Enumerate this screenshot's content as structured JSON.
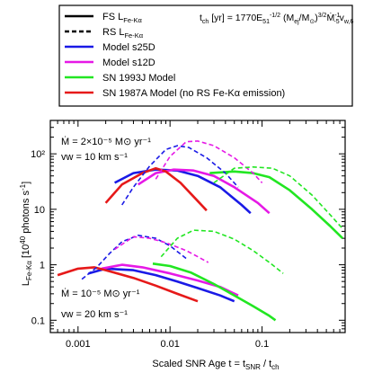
{
  "legend": {
    "entries": [
      {
        "label": "FS L",
        "sub": "Fe-Kα",
        "style": "solid",
        "color": "#000000"
      },
      {
        "label": "RS L",
        "sub": "Fe-Kα",
        "style": "dashed",
        "color": "#000000"
      },
      {
        "label": "Model s25D",
        "sub": "",
        "style": "solid",
        "color": "#1a1ae6"
      },
      {
        "label": "Model s12D",
        "sub": "",
        "style": "solid",
        "color": "#e619e6"
      },
      {
        "label": "SN 1993J Model",
        "sub": "",
        "style": "solid",
        "color": "#22e622"
      },
      {
        "label": "SN 1987A Model (no RS Fe-Kα emission)",
        "sub": "",
        "style": "solid",
        "color": "#e61919"
      }
    ],
    "formula": "t_ch [yr] = 1770 E_51^-1/2 (M_ej/M_sun)^3/2 Mdot_-5^-1 v_w,6"
  },
  "panel_labels": {
    "top_mdot": "2×10⁻⁵ M⊙ yr⁻¹",
    "top_vw": "10 km s⁻¹",
    "bottom_mdot": "10⁻⁵ M⊙ yr⁻¹",
    "bottom_vw": "20 km s⁻¹"
  },
  "chart_data": {
    "type": "line",
    "title": "",
    "xlabel": "Scaled SNR Age t = t_SNR / t_ch",
    "ylabel": "L_Fe-Kα [10^40 photons s^-1]",
    "xscale": "log",
    "yscale": "log",
    "xlim": [
      0.0005,
      0.8
    ],
    "ylim": [
      0.06,
      400
    ],
    "xticks": [
      0.001,
      0.01,
      0.1
    ],
    "xticklabels": [
      "0.001",
      "0.01",
      "0.1"
    ],
    "yticks": [
      0.1,
      1,
      10,
      100
    ],
    "yticklabels": [
      "0.1",
      "1",
      "10",
      "10²"
    ],
    "series": [
      {
        "name": "Model s25D",
        "group": "top",
        "kind": "FS",
        "color": "#1a1ae6",
        "dash": false,
        "points": [
          [
            0.0025,
            30
          ],
          [
            0.004,
            45
          ],
          [
            0.007,
            52
          ],
          [
            0.012,
            50
          ],
          [
            0.02,
            40
          ],
          [
            0.035,
            25
          ],
          [
            0.06,
            12
          ],
          [
            0.075,
            8.5
          ]
        ]
      },
      {
        "name": "Model s12D",
        "group": "top",
        "kind": "FS",
        "color": "#e619e6",
        "dash": false,
        "points": [
          [
            0.0045,
            28
          ],
          [
            0.007,
            45
          ],
          [
            0.011,
            52
          ],
          [
            0.018,
            50
          ],
          [
            0.03,
            40
          ],
          [
            0.05,
            25
          ],
          [
            0.09,
            13
          ],
          [
            0.12,
            8.5
          ]
        ]
      },
      {
        "name": "SN 1993J Model",
        "group": "top",
        "kind": "FS",
        "color": "#22e622",
        "dash": false,
        "points": [
          [
            0.027,
            45
          ],
          [
            0.05,
            48
          ],
          [
            0.08,
            45
          ],
          [
            0.12,
            38
          ],
          [
            0.2,
            22
          ],
          [
            0.35,
            10
          ],
          [
            0.55,
            5
          ],
          [
            0.75,
            3
          ]
        ]
      },
      {
        "name": "SN 1987A Model (no RS Fe-Kα emission)",
        "group": "top",
        "kind": "FS",
        "color": "#e61919",
        "dash": false,
        "points": [
          [
            0.002,
            13
          ],
          [
            0.003,
            28
          ],
          [
            0.005,
            45
          ],
          [
            0.007,
            55
          ],
          [
            0.009,
            48
          ],
          [
            0.013,
            30
          ],
          [
            0.018,
            17
          ],
          [
            0.025,
            9.5
          ]
        ]
      },
      {
        "name": "Model s25D",
        "group": "top",
        "kind": "RS",
        "color": "#1a1ae6",
        "dash": true,
        "points": [
          [
            0.003,
            12
          ],
          [
            0.004,
            25
          ],
          [
            0.006,
            60
          ],
          [
            0.009,
            120
          ],
          [
            0.012,
            140
          ],
          [
            0.016,
            130
          ],
          [
            0.025,
            85
          ],
          [
            0.04,
            45
          ],
          [
            0.055,
            25
          ]
        ]
      },
      {
        "name": "Model s12D",
        "group": "top",
        "kind": "RS",
        "color": "#e619e6",
        "dash": true,
        "points": [
          [
            0.007,
            35
          ],
          [
            0.01,
            90
          ],
          [
            0.015,
            165
          ],
          [
            0.02,
            170
          ],
          [
            0.03,
            140
          ],
          [
            0.05,
            85
          ],
          [
            0.08,
            45
          ],
          [
            0.1,
            30
          ]
        ]
      },
      {
        "name": "SN 1993J Model",
        "group": "top",
        "kind": "RS",
        "color": "#22e622",
        "dash": true,
        "points": [
          [
            0.03,
            30
          ],
          [
            0.05,
            55
          ],
          [
            0.08,
            58
          ],
          [
            0.13,
            55
          ],
          [
            0.2,
            40
          ],
          [
            0.35,
            18
          ],
          [
            0.55,
            8
          ],
          [
            0.75,
            4.5
          ]
        ]
      },
      {
        "name": "Model s25D",
        "group": "bottom",
        "kind": "FS",
        "color": "#1a1ae6",
        "dash": false,
        "points": [
          [
            0.0013,
            0.7
          ],
          [
            0.002,
            0.85
          ],
          [
            0.004,
            0.8
          ],
          [
            0.007,
            0.65
          ],
          [
            0.012,
            0.5
          ],
          [
            0.02,
            0.38
          ],
          [
            0.035,
            0.28
          ],
          [
            0.05,
            0.22
          ]
        ]
      },
      {
        "name": "Model s12D",
        "group": "bottom",
        "kind": "FS",
        "color": "#e619e6",
        "dash": false,
        "points": [
          [
            0.0018,
            0.85
          ],
          [
            0.003,
            1.0
          ],
          [
            0.005,
            0.9
          ],
          [
            0.01,
            0.7
          ],
          [
            0.02,
            0.52
          ],
          [
            0.035,
            0.4
          ],
          [
            0.055,
            0.28
          ]
        ]
      },
      {
        "name": "SN 1993J Model",
        "group": "bottom",
        "kind": "FS",
        "color": "#22e622",
        "dash": false,
        "points": [
          [
            0.0065,
            1.05
          ],
          [
            0.01,
            0.95
          ],
          [
            0.017,
            0.72
          ],
          [
            0.03,
            0.45
          ],
          [
            0.05,
            0.28
          ],
          [
            0.08,
            0.18
          ],
          [
            0.12,
            0.12
          ],
          [
            0.14,
            0.1
          ]
        ]
      },
      {
        "name": "SN 1987A Model (no RS Fe-Kα emission)",
        "group": "bottom",
        "kind": "FS",
        "color": "#e61919",
        "dash": false,
        "points": [
          [
            0.0006,
            0.65
          ],
          [
            0.001,
            0.85
          ],
          [
            0.0015,
            0.9
          ],
          [
            0.002,
            0.8
          ],
          [
            0.004,
            0.58
          ],
          [
            0.007,
            0.42
          ],
          [
            0.012,
            0.3
          ],
          [
            0.02,
            0.22
          ]
        ]
      },
      {
        "name": "Model s25D",
        "group": "bottom",
        "kind": "RS",
        "color": "#1a1ae6",
        "dash": true,
        "points": [
          [
            0.0011,
            0.55
          ],
          [
            0.0016,
            0.9
          ],
          [
            0.0022,
            1.6
          ],
          [
            0.003,
            2.6
          ],
          [
            0.0045,
            3.4
          ],
          [
            0.007,
            3.0
          ],
          [
            0.01,
            2.2
          ],
          [
            0.015,
            1.3
          ]
        ]
      },
      {
        "name": "Model s12D",
        "group": "bottom",
        "kind": "RS",
        "color": "#e619e6",
        "dash": true,
        "points": [
          [
            0.0025,
            1.9
          ],
          [
            0.004,
            3.2
          ],
          [
            0.006,
            3.0
          ],
          [
            0.009,
            2.5
          ],
          [
            0.015,
            1.8
          ],
          [
            0.02,
            1.4
          ],
          [
            0.026,
            1.1
          ]
        ]
      },
      {
        "name": "SN 1993J Model",
        "group": "bottom",
        "kind": "RS",
        "color": "#22e622",
        "dash": true,
        "points": [
          [
            0.008,
            1.4
          ],
          [
            0.012,
            3.0
          ],
          [
            0.018,
            4.2
          ],
          [
            0.03,
            4.0
          ],
          [
            0.05,
            2.9
          ],
          [
            0.08,
            1.8
          ],
          [
            0.12,
            1.1
          ],
          [
            0.17,
            0.7
          ]
        ]
      }
    ]
  }
}
